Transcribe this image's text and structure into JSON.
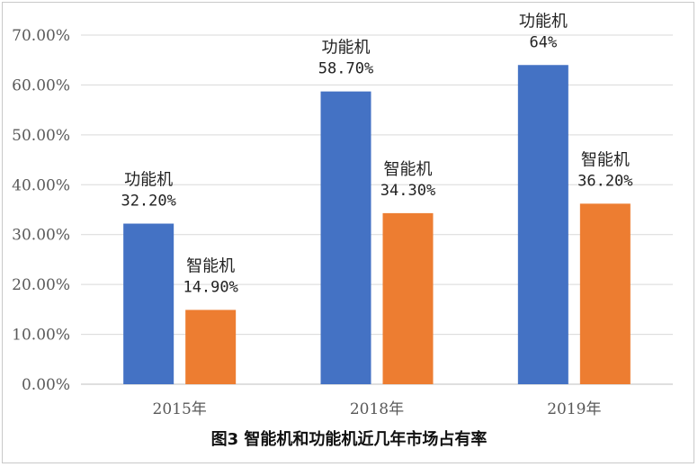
{
  "chart_data": {
    "type": "bar",
    "categories": [
      "2015年",
      "2018年",
      "2019年"
    ],
    "series": [
      {
        "name": "功能机",
        "values": [
          32.2,
          58.7,
          64
        ],
        "labels": [
          "32.20%",
          "58.70%",
          "64%"
        ],
        "color": "#4472c4"
      },
      {
        "name": "智能机",
        "values": [
          14.9,
          34.3,
          36.2
        ],
        "labels": [
          "14.90%",
          "34.30%",
          "36.20%"
        ],
        "color": "#ed7d31"
      }
    ],
    "ylim": [
      0,
      70
    ],
    "yticks": [
      "0.00%",
      "10.00%",
      "20.00%",
      "30.00%",
      "40.00%",
      "50.00%",
      "60.00%",
      "70.00%"
    ],
    "grid": true,
    "title": "",
    "xlabel": "",
    "ylabel": ""
  },
  "caption": "图3 智能机和功能机近几年市场占有率"
}
